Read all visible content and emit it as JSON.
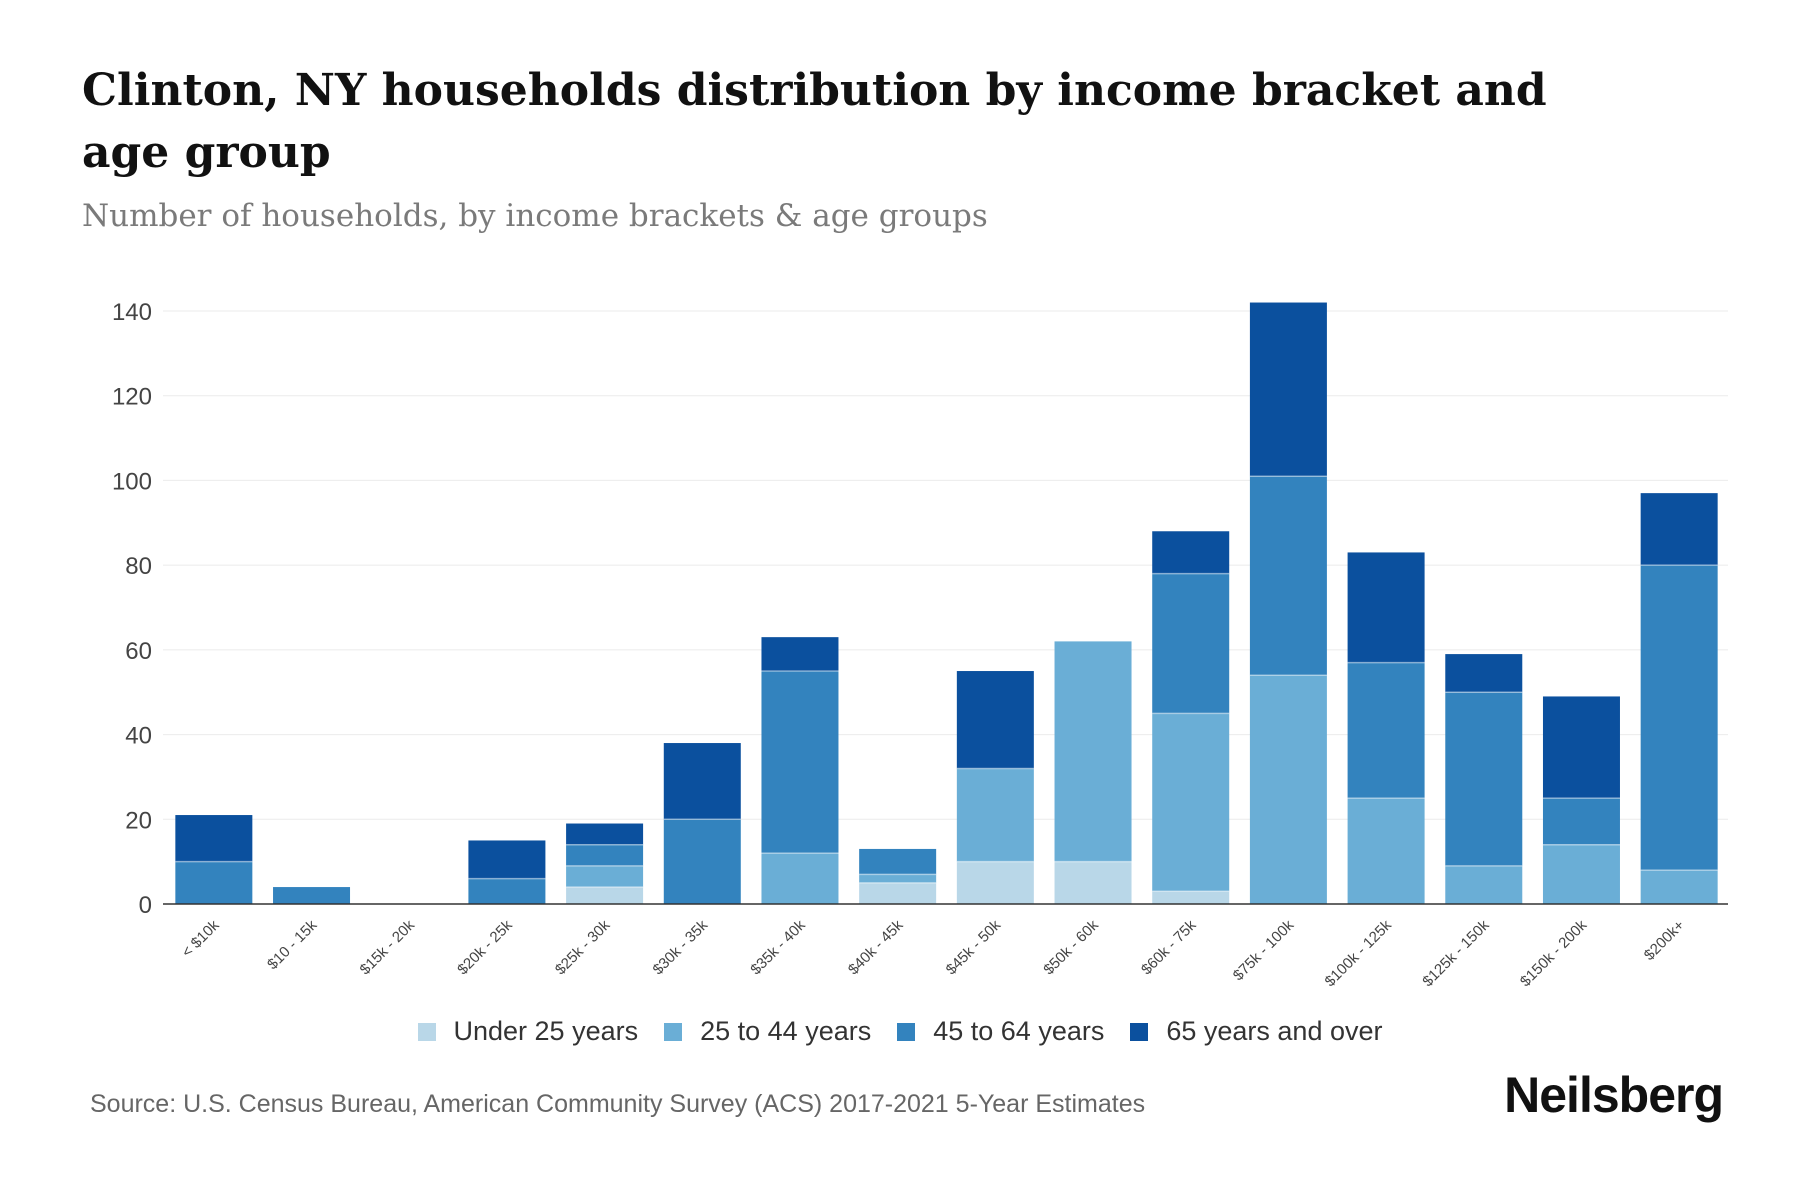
{
  "chart_data": {
    "type": "bar",
    "stacked": true,
    "title": "Clinton, NY households distribution by income bracket and age group",
    "subtitle": "Number of households, by income brackets & age groups",
    "xlabel": "",
    "ylabel": "",
    "ylim": [
      0,
      140
    ],
    "yticks": [
      0,
      20,
      40,
      60,
      80,
      100,
      120,
      140
    ],
    "grid": true,
    "legend_position": "bottom",
    "categories": [
      "< $10k",
      "$10 - 15k",
      "$15k - 20k",
      "$20k - 25k",
      "$25k - 30k",
      "$30k - 35k",
      "$35k - 40k",
      "$40k - 45k",
      "$45k - 50k",
      "$50k - 60k",
      "$60k - 75k",
      "$75k - 100k",
      "$100k - 125k",
      "$125k - 150k",
      "$150k - 200k",
      "$200k+"
    ],
    "series": [
      {
        "name": "Under 25 years",
        "color": "#b9d7e8",
        "values": [
          0,
          0,
          0,
          0,
          4,
          0,
          0,
          5,
          10,
          10,
          3,
          0,
          0,
          0,
          0,
          0
        ]
      },
      {
        "name": "25 to 44 years",
        "color": "#6aaed6",
        "values": [
          0,
          0,
          0,
          0,
          5,
          0,
          12,
          2,
          22,
          52,
          42,
          54,
          25,
          9,
          14,
          8
        ]
      },
      {
        "name": "45 to 64 years",
        "color": "#3383be",
        "values": [
          10,
          4,
          0,
          6,
          5,
          20,
          43,
          6,
          0,
          0,
          33,
          47,
          32,
          41,
          11,
          72
        ]
      },
      {
        "name": "65 years and over",
        "color": "#0b509e",
        "values": [
          11,
          0,
          0,
          9,
          5,
          18,
          8,
          0,
          23,
          0,
          10,
          41,
          26,
          9,
          24,
          17
        ]
      }
    ]
  },
  "source": "Source: U.S. Census Bureau, American Community Survey (ACS) 2017-2021 5-Year Estimates",
  "brand": "Neilsberg"
}
